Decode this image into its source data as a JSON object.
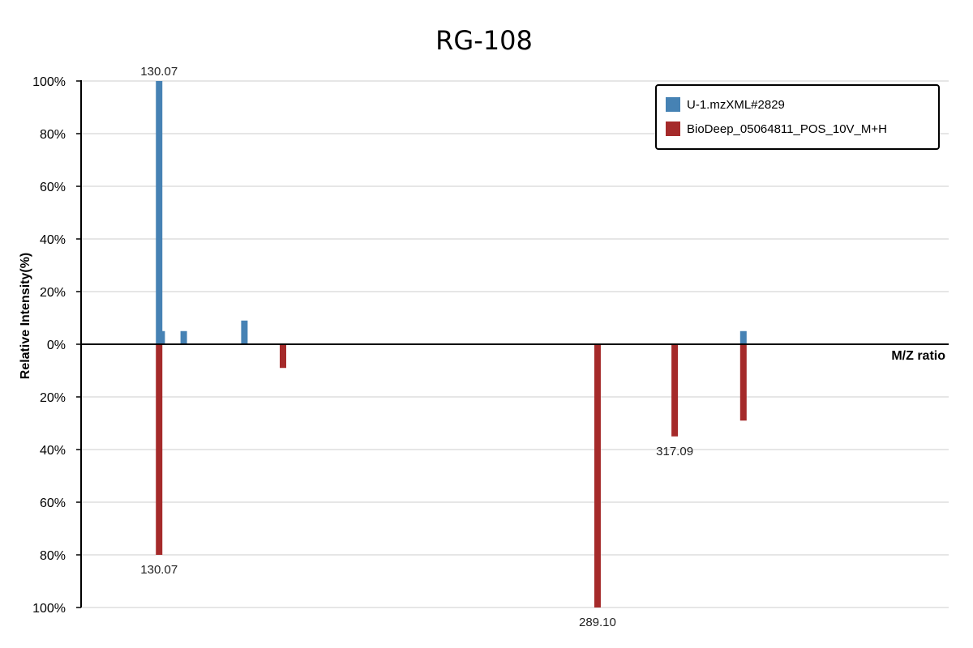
{
  "chart_data": {
    "type": "bar",
    "title": "RG-108",
    "xlabel": "M/Z ratio",
    "ylabel": "Relative Intensity(%)",
    "ylim": [
      -100,
      100
    ],
    "y_ticks": [
      "100%",
      "80%",
      "60%",
      "40%",
      "20%",
      "0%",
      "20%",
      "40%",
      "60%",
      "80%",
      "100%"
    ],
    "y_tick_values": [
      100,
      80,
      60,
      40,
      20,
      0,
      -20,
      -40,
      -60,
      -80,
      -100
    ],
    "xlim": [
      100,
      350
    ],
    "grid": true,
    "legend_position": "top-right",
    "series": [
      {
        "name": "U-1.mzXML#2829",
        "color": "#4682b4",
        "direction": "up",
        "peaks": [
          {
            "mz": 130.07,
            "intensity": 100,
            "label": "130.07"
          },
          {
            "mz": 131.0,
            "intensity": 5
          },
          {
            "mz": 139.0,
            "intensity": 5
          },
          {
            "mz": 161.0,
            "intensity": 9
          },
          {
            "mz": 342.0,
            "intensity": 5
          }
        ]
      },
      {
        "name": "BioDeep_05064811_POS_10V_M+H",
        "color": "#a52a2a",
        "direction": "down",
        "peaks": [
          {
            "mz": 130.07,
            "intensity": 80,
            "label": "130.07"
          },
          {
            "mz": 175.0,
            "intensity": 9
          },
          {
            "mz": 289.1,
            "intensity": 100,
            "label": "289.10"
          },
          {
            "mz": 317.09,
            "intensity": 35,
            "label": "317.09"
          },
          {
            "mz": 342.0,
            "intensity": 29
          }
        ]
      }
    ]
  }
}
